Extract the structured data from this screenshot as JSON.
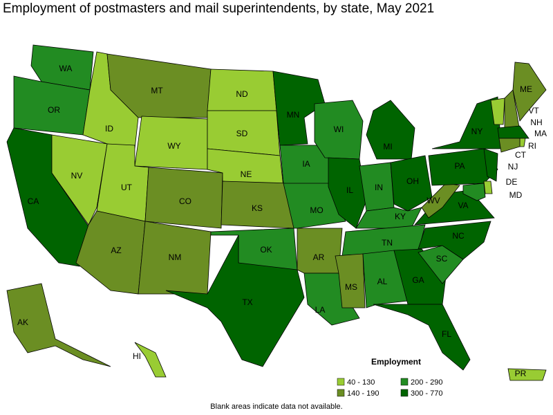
{
  "title": "Employment of postmasters and mail superintendents, by state, May 2021",
  "note": "Blank areas indicate data not available.",
  "legend": {
    "title": "Employment",
    "classes": [
      {
        "label": "40 - 130",
        "color": "#99cc33"
      },
      {
        "label": "140 - 190",
        "color": "#6b8e23"
      },
      {
        "label": "200 - 290",
        "color": "#228b22"
      },
      {
        "label": "300 - 770",
        "color": "#006400"
      }
    ]
  },
  "states": [
    {
      "label": "WA",
      "class": 2
    },
    {
      "label": "OR",
      "class": 2
    },
    {
      "label": "CA",
      "class": 3
    },
    {
      "label": "NV",
      "class": 0
    },
    {
      "label": "ID",
      "class": 0
    },
    {
      "label": "MT",
      "class": 1
    },
    {
      "label": "WY",
      "class": 0
    },
    {
      "label": "UT",
      "class": 0
    },
    {
      "label": "AZ",
      "class": 1
    },
    {
      "label": "CO",
      "class": 1
    },
    {
      "label": "NM",
      "class": 1
    },
    {
      "label": "ND",
      "class": 0
    },
    {
      "label": "SD",
      "class": 0
    },
    {
      "label": "NE",
      "class": 0
    },
    {
      "label": "KS",
      "class": 1
    },
    {
      "label": "OK",
      "class": 2
    },
    {
      "label": "TX",
      "class": 3
    },
    {
      "label": "MN",
      "class": 3
    },
    {
      "label": "IA",
      "class": 2
    },
    {
      "label": "MO",
      "class": 2
    },
    {
      "label": "AR",
      "class": 1
    },
    {
      "label": "LA",
      "class": 2
    },
    {
      "label": "WI",
      "class": 2
    },
    {
      "label": "IL",
      "class": 3
    },
    {
      "label": "MI",
      "class": 3
    },
    {
      "label": "IN",
      "class": 2
    },
    {
      "label": "OH",
      "class": 3
    },
    {
      "label": "KY",
      "class": 2
    },
    {
      "label": "TN",
      "class": 2
    },
    {
      "label": "MS",
      "class": 1
    },
    {
      "label": "AL",
      "class": 2
    },
    {
      "label": "GA",
      "class": 3
    },
    {
      "label": "FL",
      "class": 3
    },
    {
      "label": "SC",
      "class": 2
    },
    {
      "label": "NC",
      "class": 3
    },
    {
      "label": "VA",
      "class": 3
    },
    {
      "label": "WV",
      "class": 1
    },
    {
      "label": "PA",
      "class": 3
    },
    {
      "label": "NY",
      "class": 3
    },
    {
      "label": "VT",
      "class": 0
    },
    {
      "label": "NH",
      "class": 1
    },
    {
      "label": "ME",
      "class": 1
    },
    {
      "label": "MA",
      "class": 3
    },
    {
      "label": "RI",
      "class": 0
    },
    {
      "label": "CT",
      "class": 1
    },
    {
      "label": "NJ",
      "class": 3
    },
    {
      "label": "DE",
      "class": 0
    },
    {
      "label": "MD",
      "class": 2
    },
    {
      "label": "AK",
      "class": 1
    },
    {
      "label": "HI",
      "class": 0
    },
    {
      "label": "PR",
      "class": 0
    }
  ]
}
